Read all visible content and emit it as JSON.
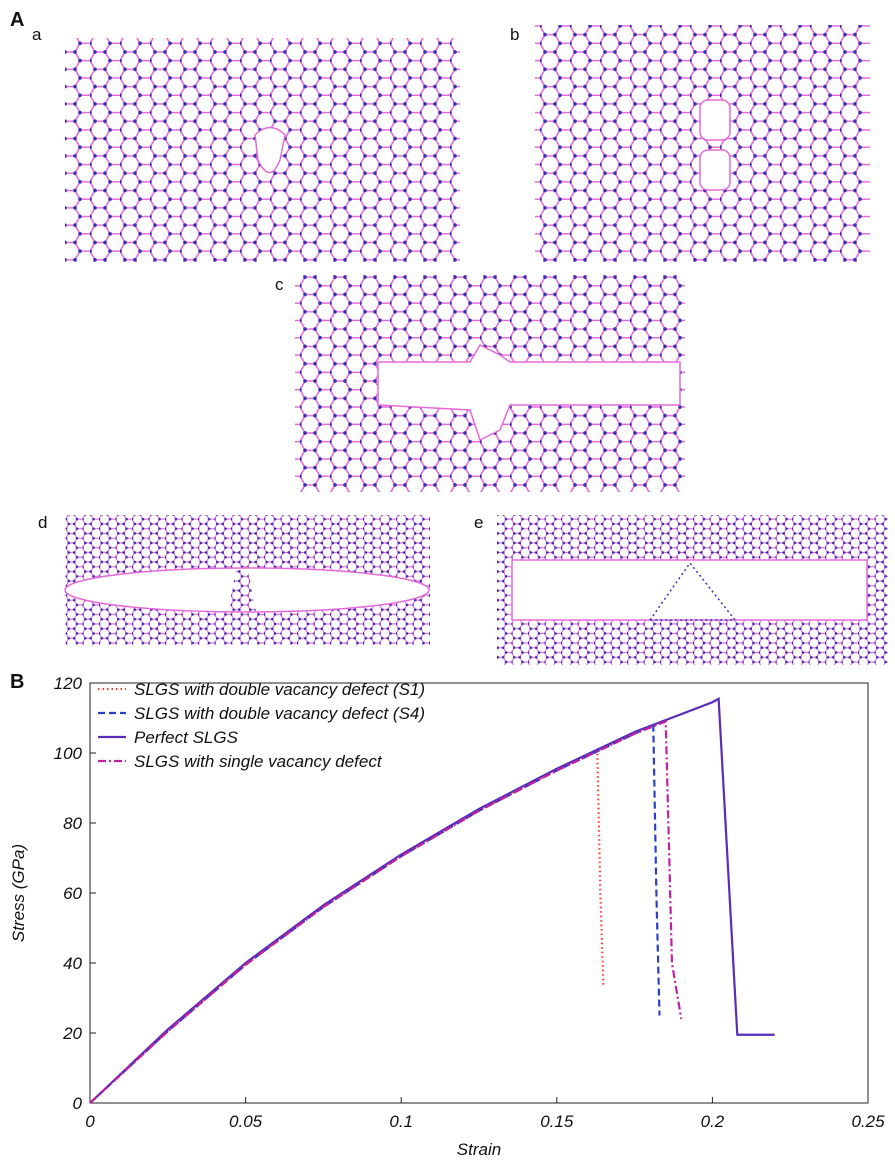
{
  "panel_labels": {
    "A": "A",
    "a": "a",
    "b": "b",
    "c": "c",
    "d": "d",
    "e": "e",
    "B": "B"
  },
  "chart_data": {
    "type": "line",
    "xlabel": "Strain",
    "ylabel": "Stress (GPa)",
    "xlim": [
      0,
      0.25
    ],
    "ylim": [
      0,
      120
    ],
    "xticks": [
      0,
      0.05,
      0.1,
      0.15,
      0.2,
      0.25
    ],
    "yticks": [
      0,
      20,
      40,
      60,
      80,
      100,
      120
    ],
    "grid": false,
    "legend": "upper left",
    "series": [
      {
        "name": "SLGS with double vacancy defect (S1)",
        "color": "#ff3b2f",
        "style": "dotted",
        "x": [
          0,
          0.025,
          0.05,
          0.075,
          0.1,
          0.125,
          0.15,
          0.163,
          0.164,
          0.165
        ],
        "values": [
          0,
          20.5,
          39.5,
          56,
          70.5,
          83.5,
          95,
          101,
          60,
          33
        ]
      },
      {
        "name": "SLGS with double vacancy defect (S4)",
        "color": "#2b3fc4",
        "style": "dashed",
        "x": [
          0,
          0.025,
          0.05,
          0.075,
          0.1,
          0.125,
          0.15,
          0.175,
          0.181,
          0.182,
          0.183
        ],
        "values": [
          0,
          20.5,
          39.5,
          56,
          70.5,
          83.5,
          95,
          105.5,
          108,
          60,
          25
        ]
      },
      {
        "name": "Perfect SLGS",
        "color": "#5a2db8",
        "style": "solid",
        "x": [
          0,
          0.025,
          0.05,
          0.075,
          0.1,
          0.125,
          0.15,
          0.175,
          0.2,
          0.202,
          0.208,
          0.22
        ],
        "values": [
          0,
          21,
          40,
          56.5,
          71,
          84,
          95.5,
          106,
          114.5,
          115.5,
          19.5,
          19.5
        ]
      },
      {
        "name": "SLGS with single vacancy defect",
        "color": "#c0219f",
        "style": "dashdot",
        "x": [
          0,
          0.025,
          0.05,
          0.075,
          0.1,
          0.125,
          0.15,
          0.175,
          0.185,
          0.186,
          0.187,
          0.19
        ],
        "values": [
          0,
          20.5,
          39.5,
          56,
          70.5,
          83.5,
          95,
          105.5,
          109,
          75,
          40,
          24
        ]
      }
    ]
  }
}
